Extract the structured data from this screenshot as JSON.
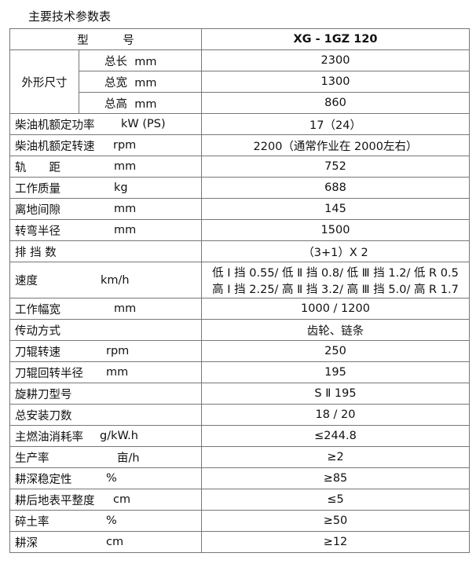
{
  "title": "主要技术参数表",
  "header": {
    "label": "型　　　号",
    "value": "XG - 1GZ 120"
  },
  "dimensions": {
    "group": "外形尺寸",
    "rows": [
      {
        "name": "总长",
        "unit": "mm",
        "value": "2300"
      },
      {
        "name": "总宽",
        "unit": "mm",
        "value": "1300"
      },
      {
        "name": "总高",
        "unit": "mm",
        "value": "860"
      }
    ]
  },
  "rows": [
    {
      "name": "柴油机额定功率",
      "unit": "kW (PS)",
      "value": "17（24）",
      "ux": 141
    },
    {
      "name": "柴油机额定转速",
      "unit": "rpm",
      "value": "2200（通常作业在 2000左右）",
      "ux": 131
    },
    {
      "name": "轨　　距",
      "unit": "mm",
      "value": "752",
      "ux": 132
    },
    {
      "name": "工作质量",
      "unit": "kg",
      "value": "688",
      "ux": 132
    },
    {
      "name": "离地间隙",
      "unit": "mm",
      "value": "145",
      "ux": 132
    },
    {
      "name": "转弯半径",
      "unit": "mm",
      "value": "1500",
      "ux": 132
    },
    {
      "name": "排 挡 数",
      "unit": "",
      "value": "（3+1）X 2",
      "ux": 132
    },
    {
      "name": "速度",
      "unit": "km/h",
      "value": "低 Ⅰ 挡 0.55/ 低 Ⅱ 挡 0.8/ 低 Ⅲ 挡 1.2/ 低 R 0.5",
      "value2": "高 Ⅰ 挡 2.25/ 高 Ⅱ 挡 3.2/ 高 Ⅲ 挡 5.0/ 高 R 1.7",
      "ux": 115
    },
    {
      "name": "工作幅宽",
      "unit": "mm",
      "value": "1000 / 1200",
      "ux": 132
    },
    {
      "name": "传动方式",
      "unit": "",
      "value": "齿轮、链条",
      "ux": 132
    },
    {
      "name": "刀辊转速",
      "unit": "rpm",
      "value": "250",
      "ux": 122
    },
    {
      "name": "刀辊回转半径",
      "unit": "mm",
      "value": "195",
      "ux": 122
    },
    {
      "name": "旋耕刀型号",
      "unit": "",
      "value": "S Ⅱ 195",
      "ux": 122
    },
    {
      "name": "总安装刀数",
      "unit": "",
      "value": "18 / 20",
      "ux": 122
    },
    {
      "name": "主燃油消耗率",
      "unit": "g/kW.h",
      "value": "≤244.8",
      "ux": 114
    },
    {
      "name": "生产率",
      "unit": "亩/h",
      "value": "≥2",
      "ux": 136
    },
    {
      "name": "耕深稳定性",
      "unit": "%",
      "value": "≥85",
      "ux": 122
    },
    {
      "name": "耕后地表平整度",
      "unit": "cm",
      "value": "≤5",
      "ux": 131
    },
    {
      "name": "碎土率",
      "unit": "%",
      "value": "≥50",
      "ux": 122
    },
    {
      "name": "耕深",
      "unit": "cm",
      "value": "≥12",
      "ux": 122
    }
  ]
}
